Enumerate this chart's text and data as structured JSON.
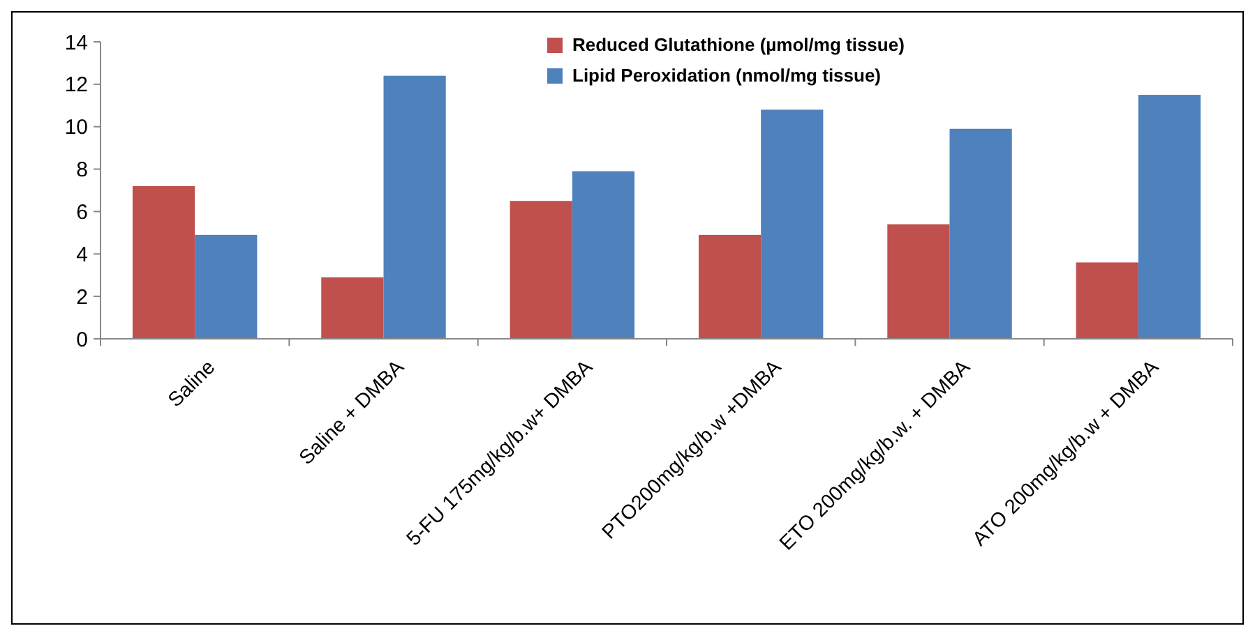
{
  "chart_data": {
    "type": "bar",
    "categories": [
      "Saline",
      "Saline + DMBA",
      "5-FU 175mg/kg/b.w+ DMBA",
      "PTO200mg/kg/b.w +DMBA",
      "ETO 200mg/kg/b.w. + DMBA",
      "ATO  200mg/kg/b.w + DMBA"
    ],
    "series": [
      {
        "name": "Reduced Glutathione (µmol/mg tissue)",
        "color": "#c0504d",
        "values": [
          7.2,
          2.9,
          6.5,
          4.9,
          5.4,
          3.6
        ]
      },
      {
        "name": "Lipid Peroxidation (nmol/mg tissue)",
        "color": "#4f81bd",
        "values": [
          4.9,
          12.4,
          7.9,
          10.8,
          9.9,
          11.5
        ]
      }
    ],
    "ylim": [
      0,
      14
    ],
    "yticks": [
      0,
      2,
      4,
      6,
      8,
      10,
      12,
      14
    ],
    "grid": false,
    "legend": "top right"
  }
}
